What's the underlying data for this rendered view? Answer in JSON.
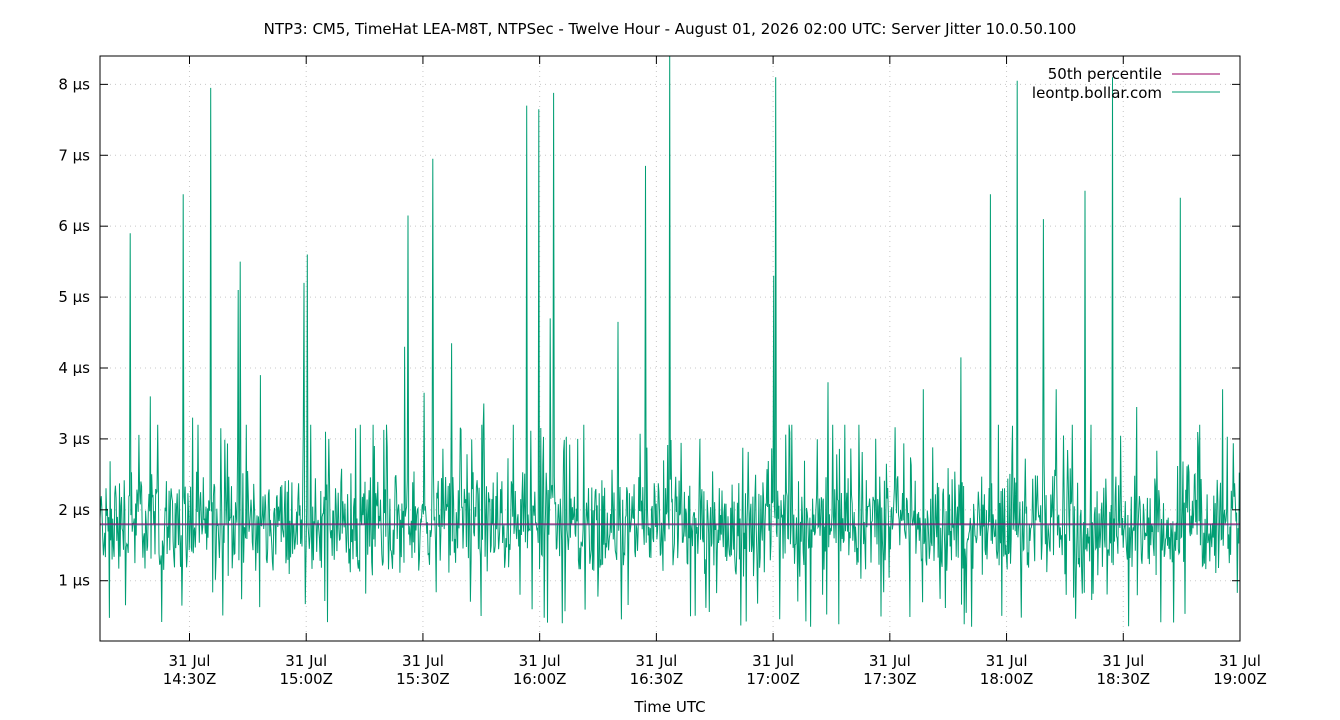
{
  "chart_data": {
    "type": "line",
    "title": "NTP3: CM5, TimeHat LEA-M8T, NTPSec - Twelve Hour - August 01, 2026 02:00 UTC: Server Jitter 10.0.50.100",
    "xlabel": "Time UTC",
    "ylabel": "",
    "x_range": [
      "14:07Z",
      "19:00Z"
    ],
    "ylim": [
      0.15,
      8.4
    ],
    "y_unit": "µs",
    "grid": true,
    "legend_position": "top-right",
    "x_ticks": [
      {
        "date": "31 Jul",
        "time": "14:30Z",
        "minutes": 1350
      },
      {
        "date": "31 Jul",
        "time": "15:00Z",
        "minutes": 1380
      },
      {
        "date": "31 Jul",
        "time": "15:30Z",
        "minutes": 1410
      },
      {
        "date": "31 Jul",
        "time": "16:00Z",
        "minutes": 1440
      },
      {
        "date": "31 Jul",
        "time": "16:30Z",
        "minutes": 1470
      },
      {
        "date": "31 Jul",
        "time": "17:00Z",
        "minutes": 1500
      },
      {
        "date": "31 Jul",
        "time": "17:30Z",
        "minutes": 1530
      },
      {
        "date": "31 Jul",
        "time": "18:00Z",
        "minutes": 1560
      },
      {
        "date": "31 Jul",
        "time": "18:30Z",
        "minutes": 1590
      },
      {
        "date": "31 Jul",
        "time": "19:00Z",
        "minutes": 1620
      }
    ],
    "y_ticks": [
      {
        "value": 1,
        "label": "1 µs"
      },
      {
        "value": 2,
        "label": "2 µs"
      },
      {
        "value": 3,
        "label": "3 µs"
      },
      {
        "value": 4,
        "label": "4 µs"
      },
      {
        "value": 5,
        "label": "5 µs"
      },
      {
        "value": 6,
        "label": "6 µs"
      },
      {
        "value": 7,
        "label": "7 µs"
      },
      {
        "value": 8,
        "label": "8 µs"
      }
    ],
    "series": [
      {
        "name": "50th percentile",
        "color": "#990066",
        "value": 1.8
      },
      {
        "name": "leontp.bollar.com",
        "color": "#009e73",
        "baseline": 1.8,
        "spikes": [
          {
            "x": 1334.7,
            "y": 5.9
          },
          {
            "x": 1339.9,
            "y": 3.6
          },
          {
            "x": 1348.3,
            "y": 6.45
          },
          {
            "x": 1350.8,
            "y": 3.3
          },
          {
            "x": 1355.5,
            "y": 7.95
          },
          {
            "x": 1358.1,
            "y": 3.15
          },
          {
            "x": 1362.6,
            "y": 5.1
          },
          {
            "x": 1363.1,
            "y": 5.5
          },
          {
            "x": 1368.2,
            "y": 3.9
          },
          {
            "x": 1379.5,
            "y": 5.2
          },
          {
            "x": 1380.3,
            "y": 5.6
          },
          {
            "x": 1385.8,
            "y": 3.0
          },
          {
            "x": 1405.3,
            "y": 4.3
          },
          {
            "x": 1406.1,
            "y": 6.15
          },
          {
            "x": 1410.3,
            "y": 3.65
          },
          {
            "x": 1412.6,
            "y": 6.95
          },
          {
            "x": 1417.4,
            "y": 4.35
          },
          {
            "x": 1425.6,
            "y": 3.5
          },
          {
            "x": 1436.7,
            "y": 7.7
          },
          {
            "x": 1439.7,
            "y": 7.65
          },
          {
            "x": 1442.7,
            "y": 4.7
          },
          {
            "x": 1443.5,
            "y": 7.88
          },
          {
            "x": 1449.8,
            "y": 3.0
          },
          {
            "x": 1460.1,
            "y": 4.65
          },
          {
            "x": 1467.2,
            "y": 6.85
          },
          {
            "x": 1473.4,
            "y": 8.4
          },
          {
            "x": 1481.1,
            "y": 3.0
          },
          {
            "x": 1500.2,
            "y": 5.3
          },
          {
            "x": 1500.6,
            "y": 8.1
          },
          {
            "x": 1514.1,
            "y": 3.8
          },
          {
            "x": 1526.4,
            "y": 3.0
          },
          {
            "x": 1538.6,
            "y": 3.7
          },
          {
            "x": 1548.3,
            "y": 4.15
          },
          {
            "x": 1555.8,
            "y": 6.45
          },
          {
            "x": 1562.7,
            "y": 8.05
          },
          {
            "x": 1569.5,
            "y": 6.1
          },
          {
            "x": 1572.8,
            "y": 3.7
          },
          {
            "x": 1580.1,
            "y": 6.5
          },
          {
            "x": 1587.3,
            "y": 8.1
          },
          {
            "x": 1593.4,
            "y": 3.45
          },
          {
            "x": 1604.6,
            "y": 6.4
          },
          {
            "x": 1615.6,
            "y": 3.7
          }
        ]
      }
    ]
  }
}
